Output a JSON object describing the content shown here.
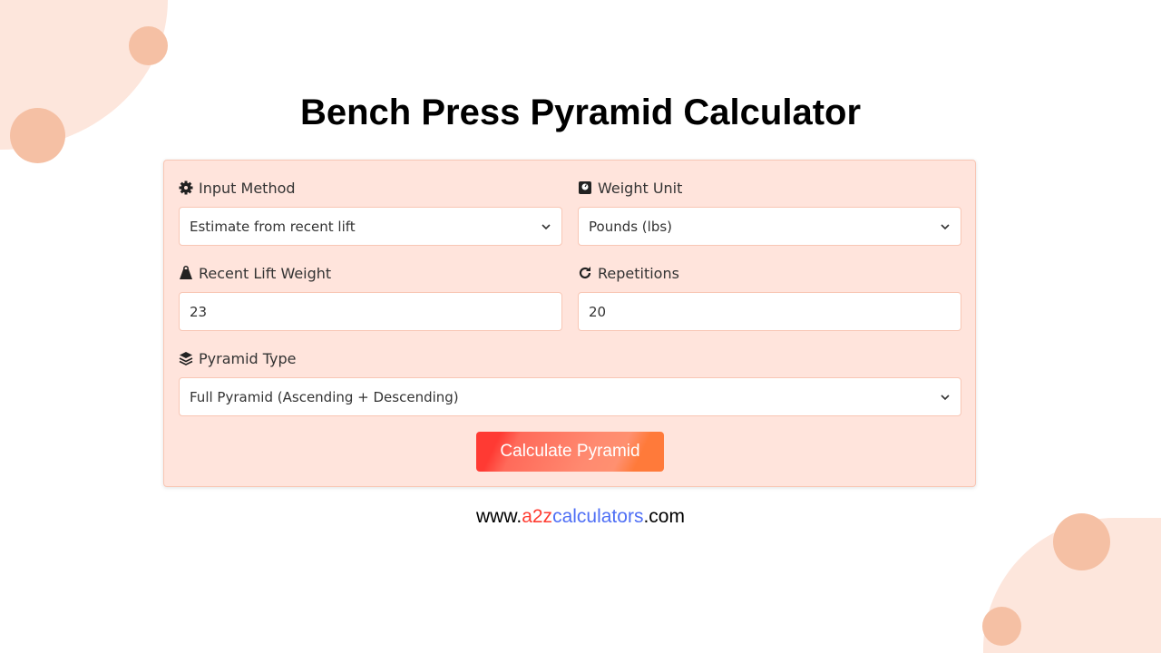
{
  "title": "Bench Press Pyramid Calculator",
  "form": {
    "input_method": {
      "label": "Input Method",
      "value": "Estimate from recent lift",
      "icon": "gear-icon"
    },
    "weight_unit": {
      "label": "Weight Unit",
      "value": "Pounds (lbs)",
      "icon": "scale-icon"
    },
    "recent_weight": {
      "label": "Recent Lift Weight",
      "value": "23",
      "icon": "weight-icon"
    },
    "repetitions": {
      "label": "Repetitions",
      "value": "20",
      "icon": "redo-icon"
    },
    "pyramid_type": {
      "label": "Pyramid Type",
      "value": "Full Pyramid (Ascending + Descending)",
      "icon": "layers-icon"
    },
    "submit_label": "Calculate Pyramid"
  },
  "footer": {
    "prefix": "www.",
    "brand_a": "a2z",
    "brand_b": "calculators",
    "suffix": ".com"
  },
  "colors": {
    "accent": "#ff3a33",
    "card": "#ffe4dc",
    "brand_red": "#ff3b30",
    "brand_blue": "#4f6ff5"
  }
}
